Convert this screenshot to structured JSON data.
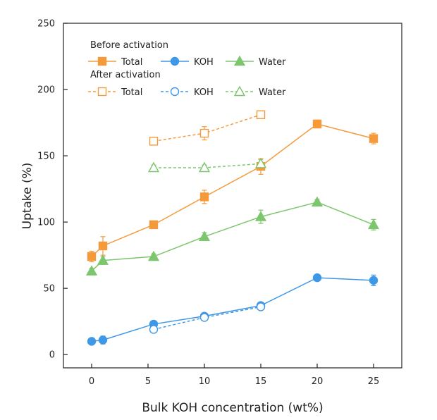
{
  "chart_data": {
    "type": "line",
    "title": "",
    "xlabel": "Bulk KOH concentration (wt%)",
    "ylabel": "Uptake (%)",
    "xlim": [
      -2.5,
      27.5
    ],
    "ylim": [
      -10,
      250
    ],
    "xticks": [
      0,
      5,
      10,
      15,
      20,
      25
    ],
    "yticks": [
      0,
      50,
      100,
      150,
      200,
      250
    ],
    "legend": {
      "placement": "top-left",
      "groups": [
        {
          "heading": "Before activation",
          "entries": [
            "Total",
            "KOH",
            "Water"
          ]
        },
        {
          "heading": "After activation",
          "entries": [
            "Total",
            "KOH",
            "Water"
          ]
        }
      ]
    },
    "colors": {
      "total": "#f59a3b",
      "koh": "#3f97e8",
      "water": "#7cc66d"
    },
    "series": [
      {
        "name": "Total",
        "group": "Before activation",
        "marker": "square",
        "filled": true,
        "dashed": false,
        "color": "#f59a3b",
        "x": [
          0,
          1,
          5.5,
          10,
          15,
          20,
          25
        ],
        "y": [
          74,
          82,
          98,
          119,
          142,
          174,
          163
        ],
        "err": [
          4,
          7,
          2,
          5,
          6,
          3,
          4
        ]
      },
      {
        "name": "KOH",
        "group": "Before activation",
        "marker": "circle",
        "filled": true,
        "dashed": false,
        "color": "#3f97e8",
        "x": [
          0,
          1,
          5.5,
          10,
          15,
          20,
          25
        ],
        "y": [
          10,
          11,
          23,
          29,
          37,
          58,
          56
        ],
        "err": [
          1,
          3,
          2,
          2,
          2,
          2,
          4
        ]
      },
      {
        "name": "Water",
        "group": "Before activation",
        "marker": "triangle",
        "filled": true,
        "dashed": false,
        "color": "#7cc66d",
        "x": [
          0,
          1,
          5.5,
          10,
          15,
          20,
          25
        ],
        "y": [
          63,
          71,
          74,
          89,
          104,
          115,
          98
        ],
        "err": [
          2,
          3,
          2,
          3,
          5,
          2,
          4
        ]
      },
      {
        "name": "Total",
        "group": "After activation",
        "marker": "square",
        "filled": false,
        "dashed": true,
        "color": "#f59a3b",
        "x": [
          5.5,
          10,
          15
        ],
        "y": [
          161,
          167,
          181
        ],
        "err": [
          2,
          5,
          2
        ]
      },
      {
        "name": "KOH",
        "group": "After activation",
        "marker": "circle",
        "filled": false,
        "dashed": true,
        "color": "#3f97e8",
        "x": [
          5.5,
          10,
          15
        ],
        "y": [
          19,
          28,
          36
        ],
        "err": [
          2,
          2,
          2
        ]
      },
      {
        "name": "Water",
        "group": "After activation",
        "marker": "triangle",
        "filled": false,
        "dashed": true,
        "color": "#7cc66d",
        "x": [
          5.5,
          10,
          15
        ],
        "y": [
          141,
          141,
          144
        ],
        "err": [
          2,
          2,
          3
        ]
      }
    ]
  }
}
